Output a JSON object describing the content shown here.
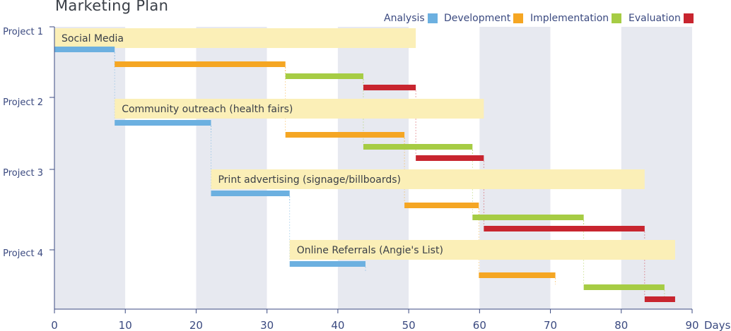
{
  "chart_data": {
    "type": "gantt",
    "title": "Marketing Plan",
    "x_unit_label": "Days",
    "xlim": [
      0,
      90
    ],
    "x_ticks": [
      0,
      10,
      20,
      30,
      40,
      50,
      60,
      70,
      80,
      90
    ],
    "legend_position": "top-right",
    "grid": "alternating vertical bands every 10 days",
    "phases": [
      {
        "name": "Analysis",
        "color": "#6cb0e0"
      },
      {
        "name": "Development",
        "color": "#f5a623"
      },
      {
        "name": "Implementation",
        "color": "#a6cc44"
      },
      {
        "name": "Evaluation",
        "color": "#c8252f"
      }
    ],
    "projects": [
      {
        "label": "Project 1",
        "name": "Social Media",
        "span": [
          0,
          51
        ],
        "tasks": [
          {
            "phase": "Analysis",
            "start": 0,
            "end": 8.5
          },
          {
            "phase": "Development",
            "start": 8.5,
            "end": 32.6
          },
          {
            "phase": "Implementation",
            "start": 32.6,
            "end": 43.6
          },
          {
            "phase": "Evaluation",
            "start": 43.6,
            "end": 51
          }
        ]
      },
      {
        "label": "Project 2",
        "name": "Community outreach (health fairs)",
        "span": [
          8.5,
          60.6
        ],
        "tasks": [
          {
            "phase": "Analysis",
            "start": 8.5,
            "end": 22.1
          },
          {
            "phase": "Development",
            "start": 32.6,
            "end": 49.4
          },
          {
            "phase": "Implementation",
            "start": 43.6,
            "end": 59
          },
          {
            "phase": "Evaluation",
            "start": 51,
            "end": 60.6
          }
        ]
      },
      {
        "label": "Project 3",
        "name": "Print advertising (signage/billboards)",
        "span": [
          22.1,
          83.3
        ],
        "tasks": [
          {
            "phase": "Analysis",
            "start": 22.1,
            "end": 33.2
          },
          {
            "phase": "Development",
            "start": 49.4,
            "end": 59.9
          },
          {
            "phase": "Implementation",
            "start": 59,
            "end": 74.7
          },
          {
            "phase": "Evaluation",
            "start": 60.6,
            "end": 83.3
          }
        ]
      },
      {
        "label": "Project 4",
        "name": "Online Referrals (Angie's List)",
        "span": [
          33.2,
          87.6
        ],
        "tasks": [
          {
            "phase": "Analysis",
            "start": 33.2,
            "end": 43.9
          },
          {
            "phase": "Development",
            "start": 59.9,
            "end": 70.7
          },
          {
            "phase": "Implementation",
            "start": 74.7,
            "end": 86.1
          },
          {
            "phase": "Evaluation",
            "start": 83.3,
            "end": 87.6
          }
        ]
      }
    ]
  }
}
